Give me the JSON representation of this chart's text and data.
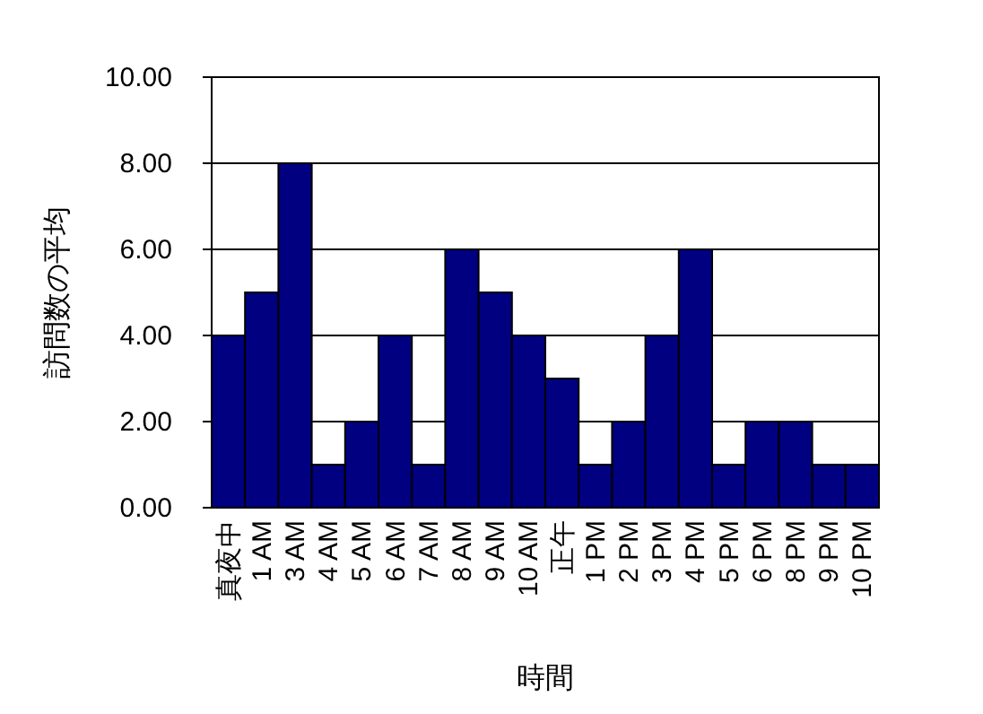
{
  "chart_data": {
    "type": "bar",
    "xlabel": "時間",
    "ylabel": "訪問数の平均",
    "categories": [
      "真夜中",
      "1 AM",
      "3 AM",
      "4 AM",
      "5 AM",
      "6 AM",
      "7 AM",
      "8 AM",
      "9 AM",
      "10 AM",
      "正午",
      "1 PM",
      "2 PM",
      "3 PM",
      "4 PM",
      "5 PM",
      "6 PM",
      "8 PM",
      "9 PM",
      "10 PM"
    ],
    "values": [
      4,
      5,
      8,
      1,
      2,
      4,
      1,
      6,
      5,
      4,
      3,
      1,
      2,
      4,
      6,
      1,
      2,
      2,
      1,
      1
    ],
    "color": "#000080",
    "ylim": [
      0,
      10
    ],
    "yticks": [
      {
        "value": 0,
        "label": "0.00"
      },
      {
        "value": 2,
        "label": "2.00"
      },
      {
        "value": 4,
        "label": "4.00"
      },
      {
        "value": 6,
        "label": "6.00"
      },
      {
        "value": 8,
        "label": "8.00"
      },
      {
        "value": 10,
        "label": "10.00"
      }
    ],
    "grid": true
  }
}
